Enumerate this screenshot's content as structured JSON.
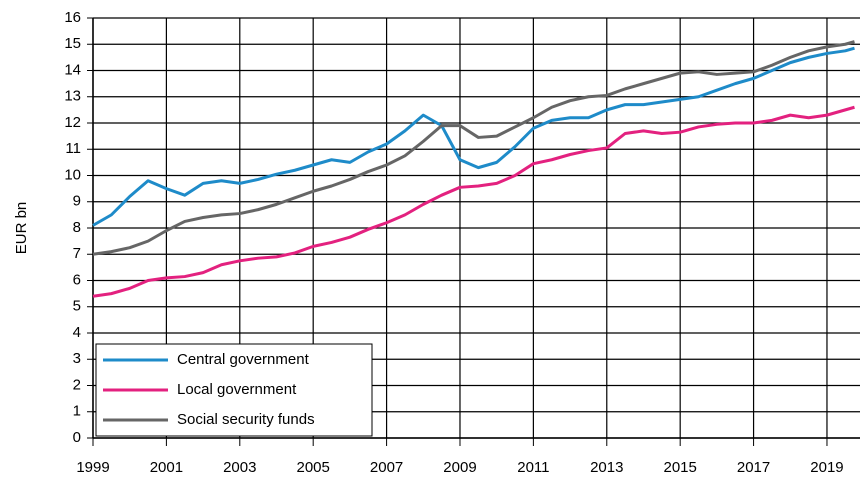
{
  "chart_data": {
    "type": "line",
    "y_label": "EUR bn",
    "x": [
      1999,
      1999.5,
      2000,
      2000.5,
      2001,
      2001.5,
      2002,
      2002.5,
      2003,
      2003.5,
      2004,
      2004.5,
      2005,
      2005.5,
      2006,
      2006.5,
      2007,
      2007.5,
      2008,
      2008.5,
      2009,
      2009.5,
      2010,
      2010.5,
      2011,
      2011.5,
      2012,
      2012.5,
      2013,
      2013.5,
      2014,
      2014.5,
      2015,
      2015.5,
      2016,
      2016.5,
      2017,
      2017.5,
      2018,
      2018.5,
      2019,
      2019.5,
      2019.75
    ],
    "series": [
      {
        "name": "Central government",
        "color": "#1e8bc9",
        "values": [
          8.1,
          8.5,
          9.2,
          9.8,
          9.5,
          9.25,
          9.7,
          9.8,
          9.7,
          9.85,
          10.05,
          10.2,
          10.4,
          10.6,
          10.5,
          10.9,
          11.2,
          11.7,
          12.3,
          11.9,
          10.6,
          10.3,
          10.5,
          11.1,
          11.8,
          12.1,
          12.2,
          12.2,
          12.5,
          12.7,
          12.7,
          12.8,
          12.9,
          13.0,
          13.25,
          13.5,
          13.7,
          14.0,
          14.3,
          14.5,
          14.65,
          14.75,
          14.85
        ]
      },
      {
        "name": "Local government",
        "color": "#e3217f",
        "values": [
          5.4,
          5.5,
          5.7,
          6.0,
          6.1,
          6.15,
          6.3,
          6.6,
          6.75,
          6.85,
          6.9,
          7.05,
          7.3,
          7.45,
          7.65,
          7.95,
          8.2,
          8.5,
          8.9,
          9.25,
          9.55,
          9.6,
          9.7,
          10.0,
          10.45,
          10.6,
          10.8,
          10.95,
          11.05,
          11.6,
          11.7,
          11.6,
          11.65,
          11.85,
          11.95,
          12.0,
          12.0,
          12.1,
          12.3,
          12.2,
          12.3,
          12.5,
          12.6
        ]
      },
      {
        "name": "Social security funds",
        "color": "#666666",
        "values": [
          7.0,
          7.1,
          7.25,
          7.5,
          7.9,
          8.25,
          8.4,
          8.5,
          8.55,
          8.7,
          8.9,
          9.15,
          9.4,
          9.6,
          9.85,
          10.15,
          10.4,
          10.75,
          11.3,
          11.9,
          11.9,
          11.45,
          11.5,
          11.85,
          12.2,
          12.6,
          12.85,
          13.0,
          13.05,
          13.3,
          13.5,
          13.7,
          13.9,
          13.95,
          13.85,
          13.9,
          13.95,
          14.2,
          14.5,
          14.75,
          14.9,
          15.0,
          15.1
        ]
      }
    ],
    "xlim": [
      1999,
      2019.9
    ],
    "xticks": [
      1999,
      2001,
      2003,
      2005,
      2007,
      2009,
      2011,
      2013,
      2015,
      2017,
      2019
    ],
    "ylim": [
      0,
      16
    ],
    "yticks": [
      0,
      1,
      2,
      3,
      4,
      5,
      6,
      7,
      8,
      9,
      10,
      11,
      12,
      13,
      14,
      15,
      16
    ],
    "grid": true
  }
}
